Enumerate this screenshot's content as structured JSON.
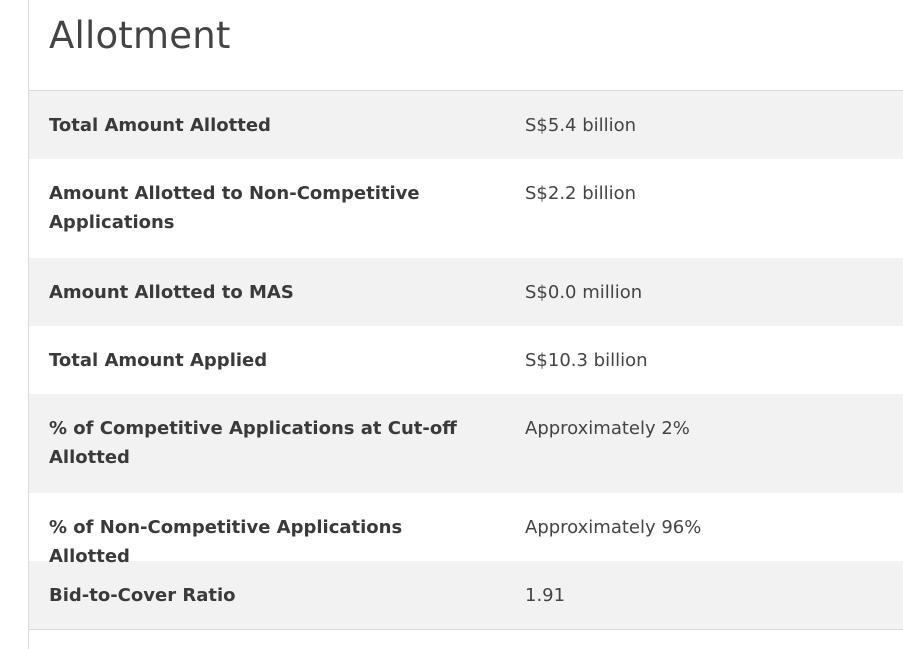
{
  "section": {
    "title": "Allotment"
  },
  "rows": [
    {
      "label": "Total Amount Allotted",
      "value": "S$5.4 billion"
    },
    {
      "label": "Amount Allotted to Non-Competitive Applications",
      "value": "S$2.2 billion"
    },
    {
      "label": "Amount Allotted to MAS",
      "value": "S$0.0 million"
    },
    {
      "label": "Total Amount Applied",
      "value": "S$10.3 billion"
    },
    {
      "label": "% of Competitive Applications at Cut-off Allotted",
      "value": "Approximately 2%"
    },
    {
      "label": "% of Non-Competitive Applications Allotted",
      "value": "Approximately 96%"
    },
    {
      "label": "Bid-to-Cover Ratio",
      "value": "1.91"
    }
  ]
}
